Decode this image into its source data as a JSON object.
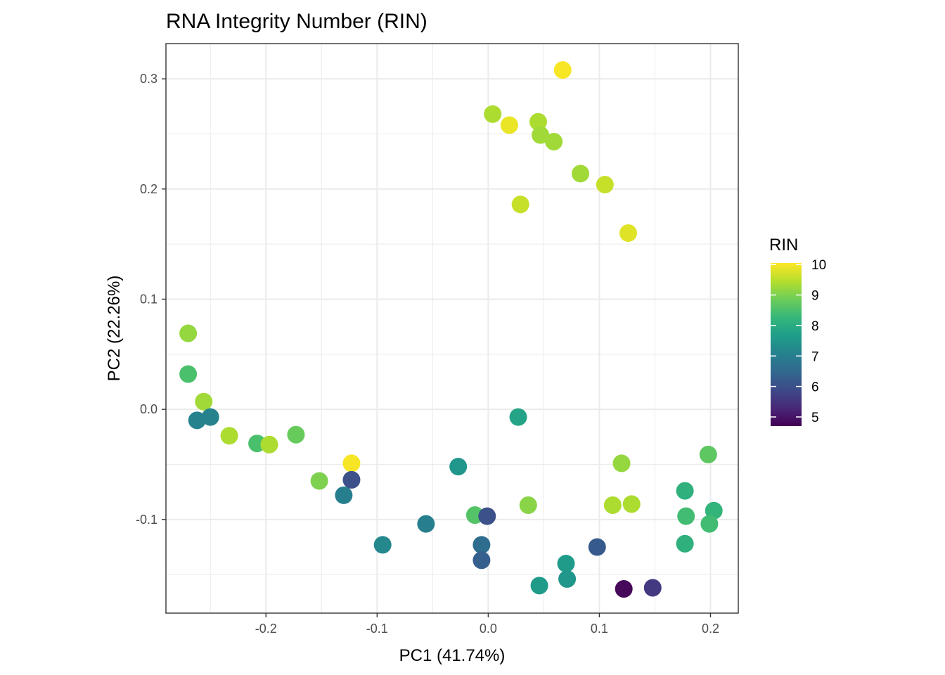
{
  "chart_data": {
    "type": "scatter",
    "title": "RNA Integrity Number (RIN)",
    "xlabel": "PC1 (41.74%)",
    "ylabel": "PC2 (22.26%)",
    "xlim": [
      -0.29,
      0.225
    ],
    "ylim": [
      -0.185,
      0.332
    ],
    "x_ticks": [
      -0.2,
      -0.1,
      0.0,
      0.1,
      0.2
    ],
    "x_tick_labels": [
      "-0.2",
      "-0.1",
      "0.0",
      "0.1",
      "0.2"
    ],
    "y_ticks": [
      -0.1,
      0.0,
      0.1,
      0.2,
      0.3
    ],
    "y_tick_labels": [
      "-0.1",
      "0.0",
      "0.1",
      "0.2",
      "0.3"
    ],
    "grid": true,
    "legend": {
      "title": "RIN",
      "placement": "right",
      "type": "colorbar",
      "min": 4.7,
      "max": 10.05,
      "breaks": [
        5,
        6,
        7,
        8,
        9,
        10
      ],
      "break_labels": [
        "5",
        "6",
        "7",
        "8",
        "9",
        "10"
      ],
      "palette": [
        "#440154",
        "#482878",
        "#3E4A89",
        "#31688E",
        "#26828E",
        "#1F9E89",
        "#35B779",
        "#6DCD59",
        "#B4DE2C",
        "#FDE725"
      ]
    },
    "points": [
      {
        "x": 0.067,
        "y": 0.308,
        "rin": 10.0
      },
      {
        "x": 0.004,
        "y": 0.268,
        "rin": 9.4
      },
      {
        "x": 0.019,
        "y": 0.258,
        "rin": 9.9
      },
      {
        "x": 0.045,
        "y": 0.261,
        "rin": 9.4
      },
      {
        "x": 0.047,
        "y": 0.249,
        "rin": 9.3
      },
      {
        "x": 0.059,
        "y": 0.243,
        "rin": 9.3
      },
      {
        "x": 0.083,
        "y": 0.214,
        "rin": 9.3
      },
      {
        "x": 0.105,
        "y": 0.204,
        "rin": 9.6
      },
      {
        "x": 0.029,
        "y": 0.186,
        "rin": 9.6
      },
      {
        "x": 0.126,
        "y": 0.16,
        "rin": 9.8
      },
      {
        "x": -0.27,
        "y": 0.069,
        "rin": 9.2
      },
      {
        "x": -0.27,
        "y": 0.032,
        "rin": 8.5
      },
      {
        "x": -0.256,
        "y": 0.007,
        "rin": 9.3
      },
      {
        "x": -0.262,
        "y": -0.01,
        "rin": 7.1
      },
      {
        "x": -0.25,
        "y": -0.007,
        "rin": 7.1
      },
      {
        "x": -0.233,
        "y": -0.024,
        "rin": 9.4
      },
      {
        "x": -0.208,
        "y": -0.031,
        "rin": 8.5
      },
      {
        "x": -0.197,
        "y": -0.032,
        "rin": 9.4
      },
      {
        "x": -0.173,
        "y": -0.023,
        "rin": 8.8
      },
      {
        "x": -0.152,
        "y": -0.065,
        "rin": 9.0
      },
      {
        "x": -0.123,
        "y": -0.049,
        "rin": 10.0
      },
      {
        "x": -0.123,
        "y": -0.064,
        "rin": 6.0
      },
      {
        "x": -0.13,
        "y": -0.078,
        "rin": 7.0
      },
      {
        "x": -0.095,
        "y": -0.123,
        "rin": 7.2
      },
      {
        "x": -0.056,
        "y": -0.104,
        "rin": 7.0
      },
      {
        "x": -0.027,
        "y": -0.052,
        "rin": 7.5
      },
      {
        "x": 0.027,
        "y": -0.007,
        "rin": 7.8
      },
      {
        "x": -0.012,
        "y": -0.096,
        "rin": 8.6
      },
      {
        "x": -0.001,
        "y": -0.097,
        "rin": 6.0
      },
      {
        "x": -0.006,
        "y": -0.123,
        "rin": 6.6
      },
      {
        "x": -0.006,
        "y": -0.137,
        "rin": 6.3
      },
      {
        "x": 0.036,
        "y": -0.087,
        "rin": 9.1
      },
      {
        "x": 0.046,
        "y": -0.16,
        "rin": 7.6
      },
      {
        "x": 0.07,
        "y": -0.14,
        "rin": 7.6
      },
      {
        "x": 0.071,
        "y": -0.154,
        "rin": 7.5
      },
      {
        "x": 0.098,
        "y": -0.125,
        "rin": 6.2
      },
      {
        "x": 0.12,
        "y": -0.049,
        "rin": 9.2
      },
      {
        "x": 0.112,
        "y": -0.087,
        "rin": 9.4
      },
      {
        "x": 0.129,
        "y": -0.086,
        "rin": 9.4
      },
      {
        "x": 0.122,
        "y": -0.163,
        "rin": 4.8
      },
      {
        "x": 0.148,
        "y": -0.162,
        "rin": 5.6
      },
      {
        "x": 0.198,
        "y": -0.041,
        "rin": 8.7
      },
      {
        "x": 0.177,
        "y": -0.074,
        "rin": 8.1
      },
      {
        "x": 0.178,
        "y": -0.097,
        "rin": 8.4
      },
      {
        "x": 0.203,
        "y": -0.092,
        "rin": 8.2
      },
      {
        "x": 0.199,
        "y": -0.104,
        "rin": 8.4
      },
      {
        "x": 0.177,
        "y": -0.122,
        "rin": 8.1
      }
    ]
  }
}
